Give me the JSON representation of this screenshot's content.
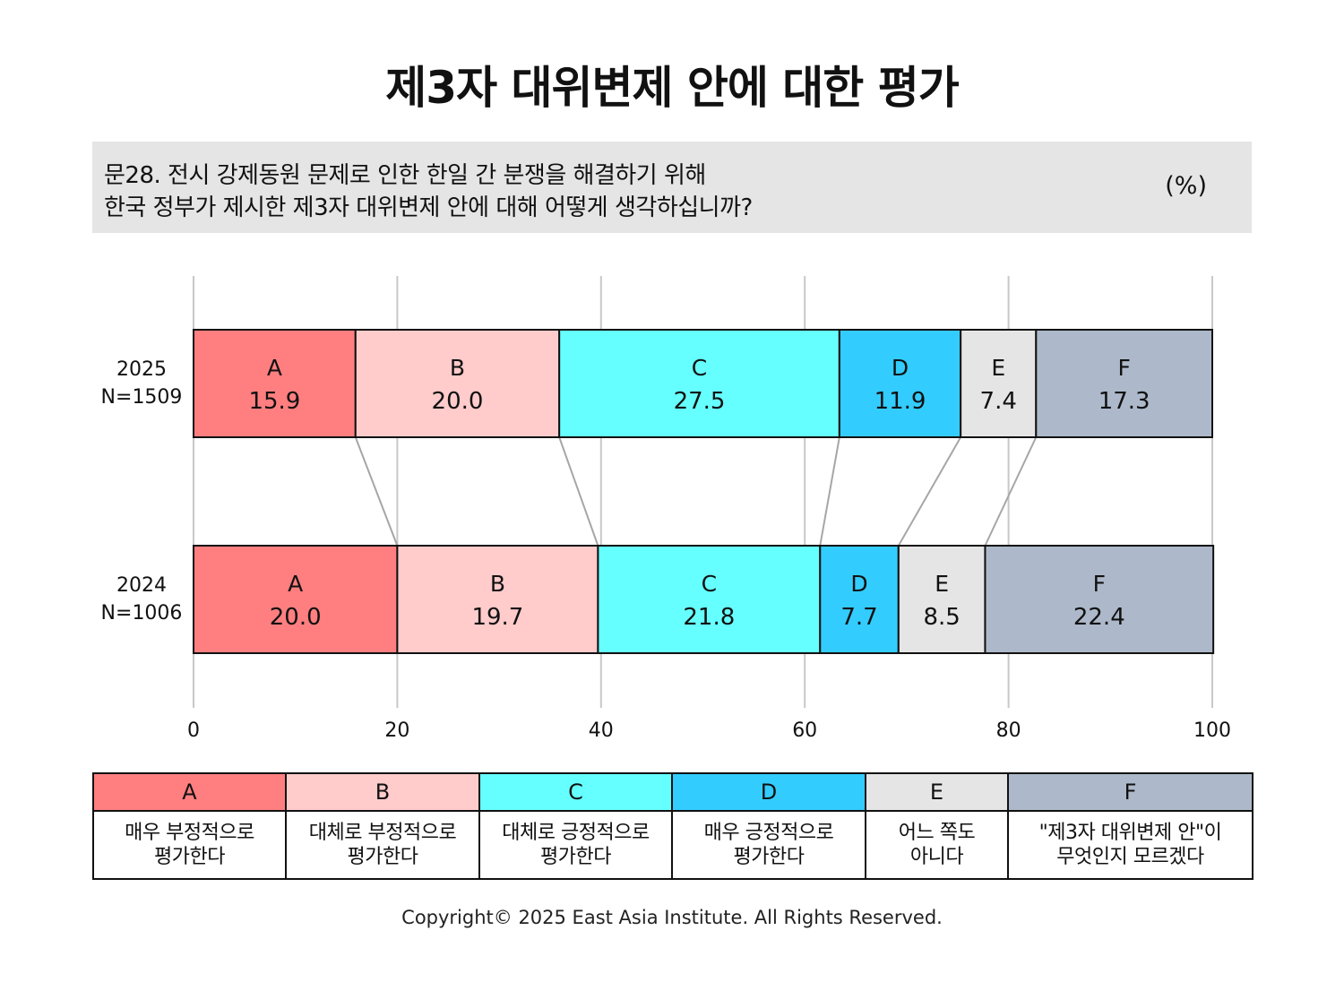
{
  "title": "제3자 대위변제 안에 대한 평가",
  "question": {
    "line1": "문28. 전시 강제동원 문제로 인한 한일 간 분쟁을 해결하기 위해",
    "line2": "한국 정부가 제시한 제3자 대위변제 안에 대해 어떻게 생각하십니까?",
    "unit": "(%)"
  },
  "chart_data": {
    "type": "bar",
    "orientation": "horizontal",
    "stacked": true,
    "categories": [
      {
        "year": "2025",
        "n": "N=1509"
      },
      {
        "year": "2024",
        "n": "N=1006"
      }
    ],
    "series": [
      {
        "name": "A",
        "color": "#ff7f80",
        "values": [
          15.9,
          20.0
        ]
      },
      {
        "name": "B",
        "color": "#ffcbcb",
        "values": [
          20.0,
          19.7
        ]
      },
      {
        "name": "C",
        "color": "#66ffff",
        "values": [
          27.5,
          21.8
        ]
      },
      {
        "name": "D",
        "color": "#33ccff",
        "values": [
          11.9,
          7.7
        ]
      },
      {
        "name": "E",
        "color": "#e6e5e6",
        "values": [
          7.4,
          8.5
        ]
      },
      {
        "name": "F",
        "color": "#adb9ca",
        "values": [
          17.3,
          22.4
        ]
      }
    ],
    "xlim": [
      0,
      100
    ],
    "xticks": [
      "0",
      "20",
      "40",
      "60",
      "80",
      "100"
    ],
    "grid": true,
    "connector_lines": true
  },
  "legend": [
    {
      "code": "A",
      "color": "#ff7f80",
      "line1": "매우 부정적으로",
      "line2": "평가한다"
    },
    {
      "code": "B",
      "color": "#ffcbcb",
      "line1": "대체로 부정적으로",
      "line2": "평가한다"
    },
    {
      "code": "C",
      "color": "#66ffff",
      "line1": "대체로 긍정적으로",
      "line2": "평가한다"
    },
    {
      "code": "D",
      "color": "#33ccff",
      "line1": "매우 긍정적으로",
      "line2": "평가한다"
    },
    {
      "code": "E",
      "color": "#e6e5e6",
      "line1": "어느 쪽도",
      "line2": "아니다"
    },
    {
      "code": "F",
      "color": "#adb9ca",
      "line1": "\"제3자 대위변제 안\"이",
      "line2": "무엇인지 모르겠다"
    }
  ],
  "copyright": "Copyright© 2025 East Asia Institute. All Rights Reserved."
}
